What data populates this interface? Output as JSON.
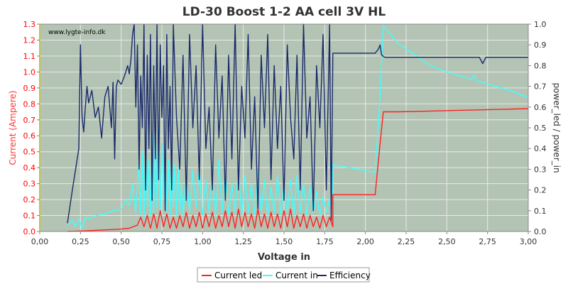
{
  "chart_data": {
    "type": "line",
    "title": "LD-30 Boost 1-2 AA cell 3V HL",
    "watermark": "www.lygte-info.dk",
    "xlabel": "Voltage in",
    "ylabel_left": "Current (Ampere)",
    "ylabel_right": "power_led / power_in",
    "xlim": [
      0.0,
      3.0
    ],
    "ylim_left": [
      0.0,
      1.3
    ],
    "ylim_right": [
      0.0,
      1.0
    ],
    "x_ticks": [
      "0,00",
      "0,25",
      "0,50",
      "0,75",
      "1,00",
      "1,25",
      "1,50",
      "1,75",
      "2,00",
      "2,25",
      "2,50",
      "2,75",
      "3,00"
    ],
    "y_left_ticks": [
      "0.0",
      "0.1",
      "0.2",
      "0.3",
      "0.4",
      "0.5",
      "0.6",
      "0.7",
      "0.8",
      "0.9",
      "1.0",
      "1.1",
      "1.2",
      "1.3"
    ],
    "y_right_ticks": [
      "0.0",
      "0.1",
      "0.2",
      "0.3",
      "0.4",
      "0.5",
      "0.6",
      "0.7",
      "0.8",
      "0.9",
      "1.0"
    ],
    "grid": true,
    "legend_position": "bottom",
    "colors": {
      "plot_bg": "#b4c4b4",
      "grid": "#e8e8e8",
      "current_led": "#ff2020",
      "current_in": "#40ffff",
      "efficiency": "#1a2a6a",
      "left_axis": "#ff0000"
    },
    "series": [
      {
        "name": "Current led",
        "axis": "left",
        "x": [
          0.17,
          0.3,
          0.4,
          0.5,
          0.55,
          0.6,
          0.62,
          0.64,
          0.66,
          0.68,
          0.7,
          0.72,
          0.74,
          0.76,
          0.78,
          0.8,
          0.82,
          0.84,
          0.86,
          0.88,
          0.9,
          0.92,
          0.94,
          0.96,
          0.98,
          1.0,
          1.02,
          1.04,
          1.06,
          1.08,
          1.1,
          1.12,
          1.14,
          1.16,
          1.18,
          1.2,
          1.22,
          1.24,
          1.26,
          1.28,
          1.3,
          1.32,
          1.34,
          1.36,
          1.38,
          1.4,
          1.42,
          1.44,
          1.46,
          1.48,
          1.5,
          1.52,
          1.54,
          1.56,
          1.58,
          1.6,
          1.62,
          1.64,
          1.66,
          1.68,
          1.7,
          1.72,
          1.74,
          1.76,
          1.78,
          1.8,
          1.8,
          2.06,
          2.09,
          2.11,
          2.2,
          2.4,
          2.6,
          2.8,
          3.0
        ],
        "values": [
          0.0,
          0.005,
          0.01,
          0.015,
          0.02,
          0.04,
          0.09,
          0.03,
          0.1,
          0.02,
          0.11,
          0.02,
          0.13,
          0.03,
          0.11,
          0.02,
          0.09,
          0.02,
          0.1,
          0.03,
          0.12,
          0.02,
          0.1,
          0.03,
          0.12,
          0.02,
          0.11,
          0.03,
          0.12,
          0.02,
          0.1,
          0.03,
          0.13,
          0.03,
          0.12,
          0.02,
          0.14,
          0.03,
          0.12,
          0.03,
          0.11,
          0.02,
          0.14,
          0.03,
          0.11,
          0.02,
          0.12,
          0.03,
          0.11,
          0.02,
          0.13,
          0.03,
          0.14,
          0.02,
          0.1,
          0.03,
          0.11,
          0.02,
          0.1,
          0.03,
          0.09,
          0.02,
          0.1,
          0.03,
          0.09,
          0.03,
          0.23,
          0.23,
          0.55,
          0.75,
          0.75,
          0.755,
          0.76,
          0.765,
          0.77
        ]
      },
      {
        "name": "Current in",
        "axis": "left",
        "x": [
          0.17,
          0.2,
          0.22,
          0.24,
          0.26,
          0.28,
          0.3,
          0.35,
          0.4,
          0.45,
          0.5,
          0.53,
          0.55,
          0.57,
          0.59,
          0.61,
          0.62,
          0.63,
          0.64,
          0.65,
          0.66,
          0.67,
          0.68,
          0.69,
          0.7,
          0.71,
          0.72,
          0.73,
          0.74,
          0.75,
          0.76,
          0.77,
          0.78,
          0.79,
          0.8,
          0.81,
          0.82,
          0.83,
          0.84,
          0.85,
          0.86,
          0.87,
          0.88,
          0.9,
          0.92,
          0.94,
          0.96,
          0.98,
          1.0,
          1.02,
          1.04,
          1.06,
          1.08,
          1.1,
          1.12,
          1.14,
          1.16,
          1.18,
          1.2,
          1.22,
          1.24,
          1.26,
          1.28,
          1.3,
          1.32,
          1.34,
          1.36,
          1.38,
          1.4,
          1.42,
          1.44,
          1.46,
          1.48,
          1.5,
          1.52,
          1.54,
          1.56,
          1.58,
          1.6,
          1.62,
          1.64,
          1.66,
          1.68,
          1.7,
          1.72,
          1.74,
          1.76,
          1.78,
          1.8,
          1.8,
          2.06,
          2.09,
          2.11,
          2.2,
          2.4,
          2.5,
          2.6,
          2.65,
          2.66,
          2.67,
          2.68,
          2.7,
          2.8,
          2.9,
          3.0
        ],
        "values": [
          0.04,
          0.07,
          0.03,
          0.08,
          0.02,
          0.09,
          0.08,
          0.1,
          0.11,
          0.13,
          0.14,
          0.2,
          0.16,
          0.3,
          0.12,
          0.45,
          0.1,
          0.5,
          0.08,
          0.55,
          0.15,
          0.45,
          0.1,
          0.6,
          0.12,
          0.68,
          0.15,
          0.65,
          0.1,
          0.55,
          0.2,
          0.5,
          0.12,
          0.45,
          0.1,
          0.5,
          0.15,
          0.42,
          0.1,
          0.4,
          0.12,
          0.3,
          0.1,
          0.35,
          0.12,
          0.38,
          0.15,
          0.4,
          0.1,
          0.32,
          0.12,
          0.35,
          0.1,
          0.45,
          0.12,
          0.38,
          0.1,
          0.3,
          0.12,
          0.4,
          0.1,
          0.35,
          0.12,
          0.3,
          0.1,
          0.38,
          0.12,
          0.32,
          0.1,
          0.28,
          0.12,
          0.35,
          0.1,
          0.3,
          0.12,
          0.32,
          0.1,
          0.35,
          0.12,
          0.3,
          0.1,
          0.28,
          0.12,
          0.25,
          0.1,
          0.22,
          0.12,
          0.2,
          0.1,
          0.42,
          0.37,
          0.85,
          1.29,
          1.18,
          1.04,
          1.0,
          0.97,
          0.95,
          0.97,
          0.98,
          0.95,
          0.94,
          0.91,
          0.88,
          0.84
        ]
      },
      {
        "name": "Efficiency",
        "axis": "right",
        "x": [
          0.17,
          0.2,
          0.22,
          0.24,
          0.25,
          0.26,
          0.27,
          0.28,
          0.29,
          0.3,
          0.32,
          0.34,
          0.36,
          0.38,
          0.4,
          0.42,
          0.44,
          0.45,
          0.46,
          0.47,
          0.48,
          0.5,
          0.52,
          0.54,
          0.55,
          0.56,
          0.57,
          0.58,
          0.59,
          0.6,
          0.61,
          0.62,
          0.63,
          0.64,
          0.65,
          0.66,
          0.67,
          0.68,
          0.69,
          0.7,
          0.71,
          0.72,
          0.73,
          0.74,
          0.75,
          0.76,
          0.77,
          0.78,
          0.79,
          0.8,
          0.81,
          0.82,
          0.84,
          0.86,
          0.88,
          0.9,
          0.92,
          0.94,
          0.96,
          0.98,
          1.0,
          1.02,
          1.04,
          1.06,
          1.08,
          1.1,
          1.12,
          1.14,
          1.16,
          1.18,
          1.2,
          1.22,
          1.24,
          1.26,
          1.28,
          1.3,
          1.32,
          1.34,
          1.36,
          1.38,
          1.4,
          1.42,
          1.44,
          1.46,
          1.48,
          1.5,
          1.52,
          1.54,
          1.56,
          1.58,
          1.6,
          1.62,
          1.64,
          1.66,
          1.68,
          1.7,
          1.72,
          1.74,
          1.76,
          1.78,
          1.79,
          1.8,
          2.06,
          2.08,
          2.09,
          2.1,
          2.12,
          2.2,
          2.3,
          2.4,
          2.5,
          2.6,
          2.7,
          2.72,
          2.74,
          2.8,
          2.9,
          3.0
        ],
        "values": [
          0.04,
          0.2,
          0.3,
          0.4,
          0.9,
          0.55,
          0.48,
          0.6,
          0.7,
          0.62,
          0.68,
          0.55,
          0.6,
          0.45,
          0.65,
          0.7,
          0.5,
          0.72,
          0.35,
          0.7,
          0.73,
          0.71,
          0.75,
          0.8,
          0.76,
          0.83,
          0.95,
          1.0,
          0.6,
          0.9,
          0.3,
          0.75,
          0.5,
          1.0,
          0.2,
          0.85,
          0.4,
          0.95,
          0.15,
          0.8,
          0.35,
          1.0,
          0.25,
          0.9,
          0.55,
          0.8,
          0.1,
          0.95,
          0.4,
          0.7,
          0.2,
          1.0,
          0.55,
          0.3,
          0.85,
          0.15,
          0.95,
          0.5,
          0.8,
          0.25,
          1.0,
          0.4,
          0.6,
          0.2,
          0.9,
          0.45,
          0.75,
          0.15,
          0.85,
          0.35,
          1.0,
          0.2,
          0.7,
          0.45,
          0.95,
          0.3,
          0.65,
          0.1,
          0.85,
          0.5,
          0.95,
          0.25,
          0.8,
          0.4,
          0.7,
          0.15,
          0.9,
          0.55,
          0.35,
          0.85,
          0.2,
          1.0,
          0.45,
          0.65,
          0.1,
          0.8,
          0.5,
          0.95,
          0.2,
          1.0,
          0.05,
          0.86,
          0.86,
          0.88,
          0.9,
          0.85,
          0.84,
          0.84,
          0.84,
          0.84,
          0.84,
          0.84,
          0.84,
          0.81,
          0.84,
          0.84,
          0.84,
          0.84
        ]
      }
    ]
  }
}
